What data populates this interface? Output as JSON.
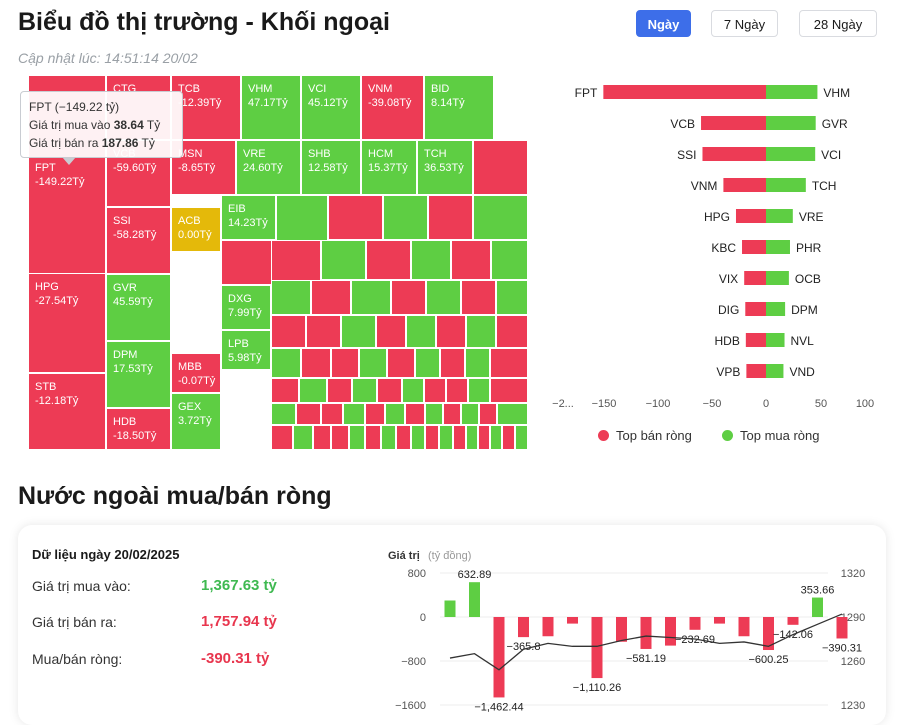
{
  "header": {
    "title": "Biểu đồ thị trường - Khối ngoại",
    "updated": "Cập nhật lúc: 14:51:14 20/02"
  },
  "tabs": [
    {
      "label": "Ngày",
      "active": true
    },
    {
      "label": "7 Ngày",
      "active": false
    },
    {
      "label": "28 Ngày",
      "active": false
    }
  ],
  "colors": {
    "sell": "#ed3b55",
    "buy": "#5ece43",
    "neutral": "#e4b90a"
  },
  "treemap": {
    "unit": "Tỷ",
    "items": [
      {
        "s": "FPT",
        "v": -149.22
      },
      {
        "s": "CTG",
        "v": null
      },
      {
        "s": "TCB",
        "v": -12.39
      },
      {
        "s": "VHM",
        "v": 47.17
      },
      {
        "s": "VCI",
        "v": 45.12
      },
      {
        "s": "VNM",
        "v": -39.08
      },
      {
        "s": "BID",
        "v": 8.14
      },
      {
        "s": "VCB",
        "v": -59.6
      },
      {
        "s": "MSN",
        "v": -8.65
      },
      {
        "s": "VRE",
        "v": 24.6
      },
      {
        "s": "SHB",
        "v": 12.58
      },
      {
        "s": "HCM",
        "v": 15.37
      },
      {
        "s": "TCH",
        "v": 36.53
      },
      {
        "s": "SSI",
        "v": -58.28
      },
      {
        "s": "ACB",
        "v": 0.0
      },
      {
        "s": "EIB",
        "v": 14.23
      },
      {
        "s": "HPG",
        "v": -27.54
      },
      {
        "s": "GVR",
        "v": 45.59
      },
      {
        "s": "DXG",
        "v": 7.99
      },
      {
        "s": "LPB",
        "v": 5.98
      },
      {
        "s": "DPM",
        "v": 17.53
      },
      {
        "s": "MBB",
        "v": -0.07
      },
      {
        "s": "STB",
        "v": -12.18
      },
      {
        "s": "HDB",
        "v": -18.5
      },
      {
        "s": "GEX",
        "v": 3.72
      }
    ]
  },
  "tooltip": {
    "head": "FPT (−149.22 tỷ)",
    "buy_label": "Giá trị mua vào",
    "buy_value": "38.64",
    "sell_label": "Giá trị bán ra",
    "sell_value": "187.86",
    "unit": "Tỷ"
  },
  "top_chart": {
    "sell": [
      {
        "s": "FPT",
        "v": -149.22
      },
      {
        "s": "VCB",
        "v": -59.6
      },
      {
        "s": "SSI",
        "v": -58.28
      },
      {
        "s": "VNM",
        "v": -39.08
      },
      {
        "s": "HPG",
        "v": -27.54
      },
      {
        "s": "KBC",
        "v": -22
      },
      {
        "s": "VIX",
        "v": -20
      },
      {
        "s": "DIG",
        "v": -19
      },
      {
        "s": "HDB",
        "v": -18.5
      },
      {
        "s": "VPB",
        "v": -18
      }
    ],
    "buy": [
      {
        "s": "VHM",
        "v": 47.17
      },
      {
        "s": "GVR",
        "v": 45.59
      },
      {
        "s": "VCI",
        "v": 45.12
      },
      {
        "s": "TCH",
        "v": 36.53
      },
      {
        "s": "VRE",
        "v": 24.6
      },
      {
        "s": "PHR",
        "v": 22
      },
      {
        "s": "OCB",
        "v": 21
      },
      {
        "s": "DPM",
        "v": 17.53
      },
      {
        "s": "NVL",
        "v": 17
      },
      {
        "s": "VND",
        "v": 16
      }
    ],
    "xticks": [
      "−2...",
      "−150",
      "−100",
      "−50",
      "0",
      "50",
      "100"
    ],
    "legend": {
      "sell": "Top bán ròng",
      "buy": "Top mua ròng"
    }
  },
  "net_section": {
    "title": "Nước ngoài mua/bán ròng",
    "date_label": "Dữ liệu ngày 20/02/2025",
    "buy_label": "Giá trị mua vào:",
    "buy_value": "1,367.63 tỷ",
    "sell_label": "Giá trị bán ra:",
    "sell_value": "1,757.94 tỷ",
    "net_label": "Mua/bán ròng:",
    "net_value": "-390.31 tỷ"
  },
  "chart_data": {
    "type": "bar",
    "ylabel": "Giá trị",
    "yunit": "(tỷ đồng)",
    "yticks": [
      "800",
      "0",
      "−800",
      "−1600"
    ],
    "ylim": [
      -1600,
      800
    ],
    "y2ticks": [
      "1320",
      "1290",
      "1260",
      "1230"
    ],
    "y2lim": [
      1230,
      1320
    ],
    "values": [
      300,
      632.89,
      -1462.44,
      -365.8,
      -350,
      -120,
      -1110.26,
      -450,
      -581.19,
      -520,
      -232.69,
      -120,
      -350,
      -600.25,
      -142.06,
      353.66,
      -390.31
    ],
    "labels": [
      "",
      "632.89",
      "−1,462.44",
      "−365.8",
      "",
      "",
      "−1,110.26",
      "",
      "−581.19",
      "",
      "−232.69",
      "",
      "",
      "−600.25",
      "−142.06",
      "353.66",
      "−390.31"
    ],
    "index_line": [
      1262,
      1265,
      1254,
      1268,
      1272,
      1270,
      1270,
      1274,
      1277,
      1276,
      1275,
      1272,
      1273,
      1270,
      1278,
      1285,
      1292
    ]
  }
}
